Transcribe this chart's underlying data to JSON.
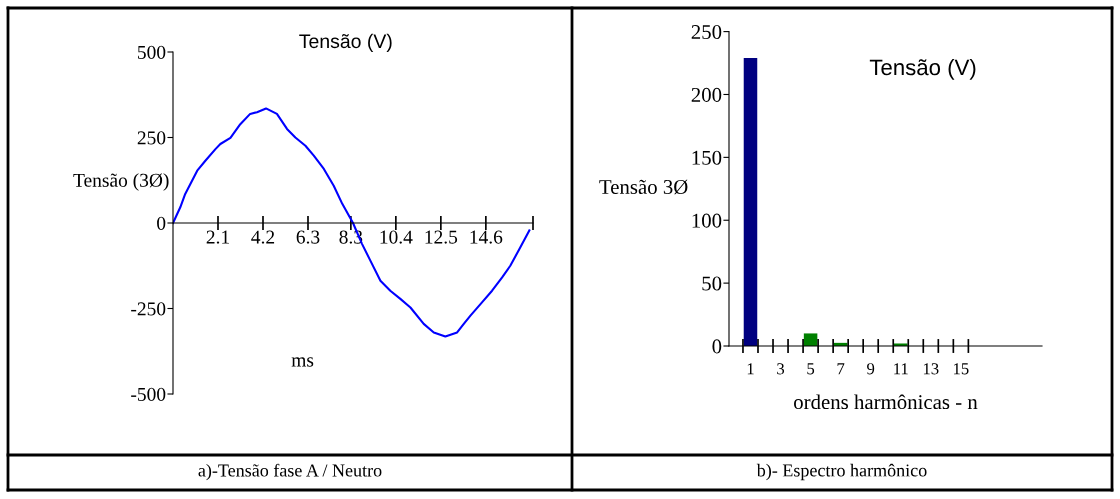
{
  "chart_data": [
    {
      "type": "line",
      "title": "Tensão (V)",
      "ylabel": "Tensão (3Ø)",
      "xlabel": "ms",
      "annotations": [
        "a)-Tensão fase A / Neutro"
      ],
      "x": [
        0,
        0.34,
        0.57,
        1.13,
        1.51,
        1.98,
        2.21,
        2.68,
        3.14,
        3.6,
        3.92,
        4.34,
        4.85,
        5.32,
        5.71,
        6.18,
        6.57,
        7.04,
        7.5,
        7.9,
        8.4,
        8.82,
        9.21,
        9.68,
        10.14,
        10.61,
        11.08,
        11.7,
        12.17,
        12.71,
        13.26,
        13.57,
        13.88,
        14.42,
        14.89,
        15.36,
        15.74,
        16.21,
        16.63
      ],
      "series": [
        {
          "color": "#0000ff",
          "values": [
            0,
            46,
            85,
            153,
            182,
            216,
            231,
            249,
            289,
            319,
            324,
            335,
            319,
            275,
            250,
            226,
            197,
            158,
            109,
            56,
            0,
            -61,
            -110,
            -169,
            -198,
            -222,
            -247,
            -295,
            -320,
            -332,
            -320,
            -295,
            -271,
            -232,
            -198,
            -159,
            -125,
            -71,
            -22
          ]
        }
      ],
      "xlim": [
        0,
        16.8
      ],
      "xticks": [
        2.1,
        4.2,
        6.3,
        8.3,
        10.4,
        12.5,
        14.6,
        {
          "value": 16.8,
          "label": null
        }
      ],
      "ylim": [
        -500,
        500
      ],
      "yticks": [
        -500,
        -250,
        0,
        250,
        500
      ],
      "grid": false,
      "legend": false
    },
    {
      "type": "bar",
      "title": "Tensão (V)",
      "ylabel": "Tensão 3Ø",
      "xlabel": "ordens harmônicas - n",
      "annotations": [
        "b)- Espectro harmônico"
      ],
      "categories": [
        "1",
        null,
        "3",
        null,
        "5",
        null,
        "7",
        null,
        "9",
        null,
        "11",
        null,
        "13",
        null,
        "15"
      ],
      "values": [
        229,
        0,
        null,
        0,
        10,
        0,
        2.5,
        0,
        null,
        0,
        2,
        0,
        null,
        0,
        0
      ],
      "colors": [
        "#000080",
        "#008000",
        "#008000",
        "#008000",
        "#008000",
        "#008000",
        "#008000",
        "#008000",
        "#008000",
        "#008000",
        "#008000",
        "#008000",
        "#008000",
        "#008000",
        "#008000"
      ],
      "ylim": [
        0,
        250
      ],
      "yticks": [
        0,
        50,
        100,
        150,
        200,
        250
      ],
      "grid": false,
      "legend": false
    }
  ]
}
